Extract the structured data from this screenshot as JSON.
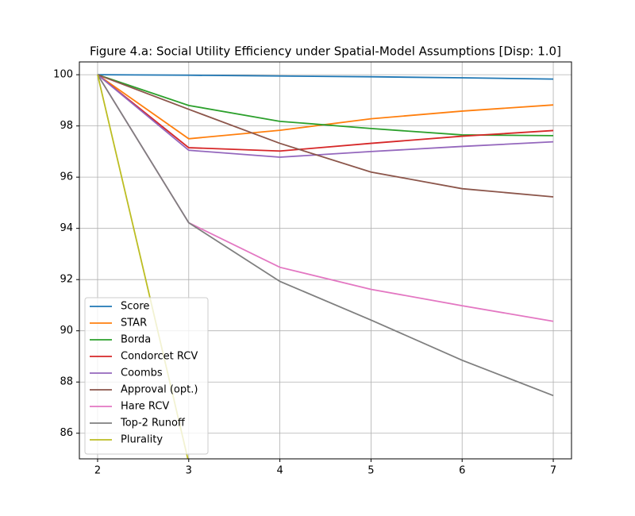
{
  "chart_data": {
    "type": "line",
    "title": "Figure 4.a: Social Utility Efficiency under Spatial-Model Assumptions [Disp: 1.0]",
    "x": [
      2,
      3,
      4,
      5,
      6,
      7
    ],
    "xlim": [
      1.8,
      7.2
    ],
    "xticks": [
      2,
      3,
      4,
      5,
      6,
      7
    ],
    "ylim": [
      85,
      100.5
    ],
    "yticks": [
      86,
      88,
      90,
      92,
      94,
      96,
      98,
      100
    ],
    "grid": true,
    "legend": "lower left",
    "series": [
      {
        "name": "Score",
        "color": "#1f77b4",
        "values": [
          100,
          99.98,
          99.95,
          99.92,
          99.88,
          99.83
        ]
      },
      {
        "name": "STAR",
        "color": "#ff7f0e",
        "values": [
          100,
          97.5,
          97.83,
          98.28,
          98.58,
          98.82
        ]
      },
      {
        "name": "Borda",
        "color": "#2ca02c",
        "values": [
          100,
          98.8,
          98.18,
          97.9,
          97.65,
          97.62
        ]
      },
      {
        "name": "Condorcet RCV",
        "color": "#d62728",
        "values": [
          100,
          97.15,
          97.02,
          97.32,
          97.6,
          97.82
        ]
      },
      {
        "name": "Coombs",
        "color": "#9467bd",
        "values": [
          100,
          97.05,
          96.78,
          97.0,
          97.2,
          97.38
        ]
      },
      {
        "name": "Approval (opt.)",
        "color": "#8c564b",
        "values": [
          100,
          98.65,
          97.32,
          96.2,
          95.55,
          95.23
        ]
      },
      {
        "name": "Hare RCV",
        "color": "#e377c2",
        "values": [
          100,
          94.22,
          92.48,
          91.62,
          90.98,
          90.37
        ]
      },
      {
        "name": "Top-2 Runoff",
        "color": "#7f7f7f",
        "values": [
          100,
          94.22,
          91.93,
          90.42,
          88.85,
          87.47
        ]
      },
      {
        "name": "Plurality",
        "color": "#bcbd22",
        "values": [
          100,
          84.85,
          null,
          null,
          null,
          null
        ]
      }
    ]
  }
}
